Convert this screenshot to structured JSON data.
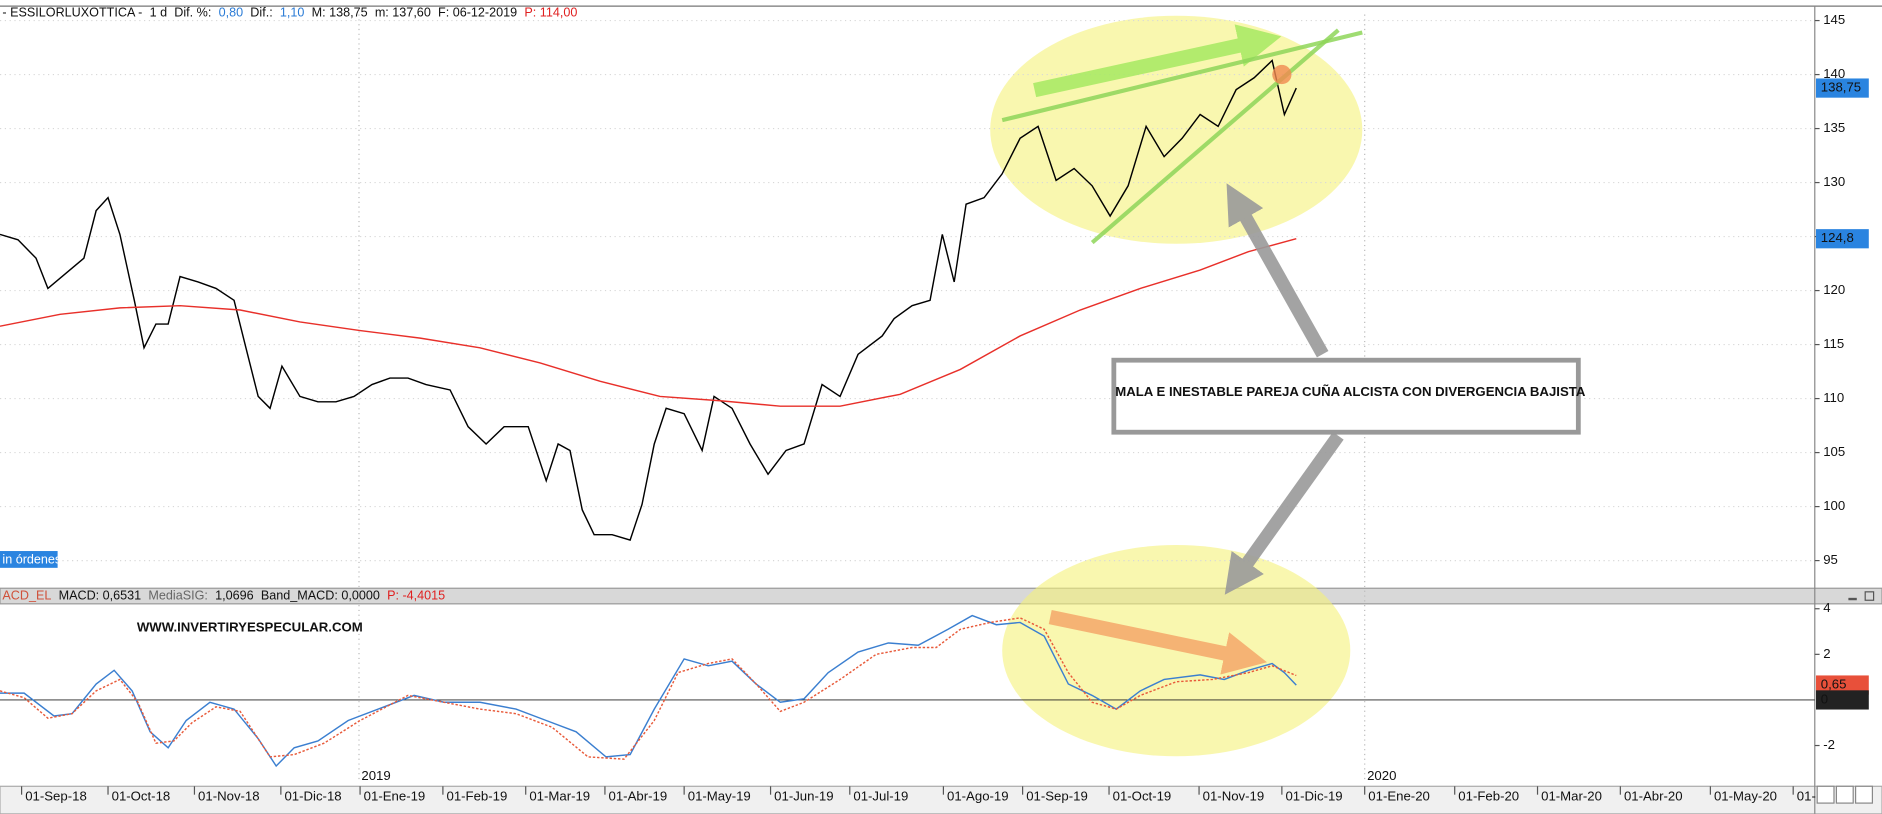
{
  "ui": {
    "orders_tab": "in órdenes"
  },
  "chart_data": [
    {
      "type": "line",
      "header_segments": [
        {
          "text": "- ESSILORLUXOTTICA -",
          "color": "#111"
        },
        {
          "text": "1 d",
          "color": "#111"
        },
        {
          "text": "Dif. %:",
          "color": "#111"
        },
        {
          "text": "0,80",
          "color": "#2a7bd6"
        },
        {
          "text": "Dif.:",
          "color": "#111"
        },
        {
          "text": "1,10",
          "color": "#2a7bd6"
        },
        {
          "text": "M: 138,75",
          "color": "#111"
        },
        {
          "text": "m: 137,60",
          "color": "#111"
        },
        {
          "text": "F: 06-12-2019",
          "color": "#111"
        },
        {
          "text": "P: 114,00",
          "color": "#e02020"
        }
      ],
      "xlim": [
        0,
        504
      ],
      "ylim": [
        92.44,
        145.56
      ],
      "yticks": [
        95,
        100,
        105,
        110,
        115,
        120,
        125,
        130,
        135,
        140,
        145
      ],
      "grid": true,
      "series": [
        {
          "color": "#000000",
          "x": [
            0,
            5,
            10,
            13.3,
            18.3,
            23.3,
            26.7,
            30,
            33.3,
            37.3,
            40,
            43.3,
            46.7,
            50,
            55,
            60,
            65,
            68.3,
            71.7,
            75,
            78.3,
            83.3,
            88.3,
            93.3,
            98.3,
            103.3,
            108.3,
            113.3,
            118.3,
            125,
            130,
            135,
            140,
            146.7,
            151.7,
            155,
            158.3,
            161.7,
            165,
            170,
            175,
            178.3,
            181.7,
            185,
            190,
            195,
            198.3,
            203.3,
            208.3,
            213.3,
            218.3,
            223.3,
            228.3,
            233.3,
            238.3,
            245,
            248.3,
            253.3,
            258.3,
            261.7,
            265,
            268.3,
            273.3,
            278.3,
            283.3,
            288.3,
            293.3,
            298.3,
            303.3,
            308.3,
            313.3,
            318.3,
            323.3,
            328.3,
            333.3,
            338.3,
            343.3,
            348.3,
            353.3,
            356.7,
            360
          ],
          "values": [
            125.2,
            124.7,
            123,
            120.2,
            121.6,
            123,
            127.4,
            128.6,
            125.2,
            119.1,
            114.7,
            116.9,
            116.9,
            121.3,
            120.8,
            120.2,
            119.1,
            114.7,
            110.2,
            109.1,
            113,
            110.2,
            109.7,
            109.7,
            110.2,
            111.3,
            111.9,
            111.9,
            111.3,
            110.8,
            107.4,
            105.8,
            107.4,
            107.4,
            102.4,
            105.8,
            105.2,
            99.7,
            97.4,
            97.4,
            96.9,
            100.2,
            105.8,
            109.1,
            108.6,
            105.2,
            110.2,
            109.1,
            105.8,
            103,
            105.2,
            105.8,
            111.3,
            110.2,
            114.1,
            115.8,
            117.4,
            118.6,
            119.1,
            125.2,
            120.8,
            128,
            128.6,
            130.8,
            134.1,
            135.2,
            130.2,
            131.3,
            129.7,
            126.9,
            129.7,
            135.2,
            132.4,
            134.1,
            136.3,
            135.2,
            138.6,
            139.7,
            141.3,
            136.3,
            138.75
          ]
        },
        {
          "color": "#e8302a",
          "x": [
            0,
            16.7,
            33.3,
            50,
            66.7,
            83.3,
            100,
            116.7,
            133.3,
            150,
            166.7,
            183.3,
            200,
            216.7,
            233.3,
            250,
            266.7,
            283.3,
            300,
            316.7,
            333.3,
            346.7,
            360
          ],
          "values": [
            116.7,
            117.8,
            118.4,
            118.6,
            118.2,
            117.1,
            116.3,
            115.6,
            114.7,
            113.3,
            111.6,
            110.2,
            109.8,
            109.3,
            109.3,
            110.4,
            112.7,
            115.8,
            118.2,
            120.2,
            121.9,
            123.6,
            124.8
          ]
        }
      ],
      "flags": [
        {
          "value": 138.75,
          "label": "138,75",
          "color": "#2a84e0"
        },
        {
          "value": 124.8,
          "label": "124,8",
          "color": "#2a84e0"
        }
      ],
      "annotations": [
        "MALA E INESTABLE PAREJA CUÑA ALCISTA CON DIVERGENCIA BAJISTA"
      ]
    },
    {
      "type": "line",
      "header_segments": [
        {
          "text": "ACD_EL",
          "color": "#d0503a"
        },
        {
          "text": "MACD: 0,6531",
          "color": "#111"
        },
        {
          "text": "MediaSIG:",
          "color": "#666"
        },
        {
          "text": "1,0696",
          "color": "#111"
        },
        {
          "text": "Band_MACD: 0,0000",
          "color": "#111"
        },
        {
          "text": "P: -4,4015",
          "color": "#e02020"
        }
      ],
      "xlim": [
        0,
        504
      ],
      "ylim": [
        -3.63,
        4.11
      ],
      "yticks": [
        -2,
        2,
        4
      ],
      "zero_line": true,
      "series": [
        {
          "color": "#3b7fd0",
          "dash": false,
          "x": [
            0,
            6.7,
            15,
            20,
            26.7,
            31.7,
            36.7,
            41.7,
            46.7,
            51.7,
            58.3,
            65,
            71.7,
            76.7,
            81.7,
            88.3,
            96.7,
            106.7,
            115,
            123.3,
            133.3,
            143.3,
            151.7,
            160,
            168.3,
            175,
            181.7,
            190,
            196.7,
            203.3,
            210,
            216.7,
            223.3,
            230,
            238.3,
            246.7,
            255,
            263.3,
            270,
            276.7,
            283.3,
            290,
            296.7,
            303.3,
            310,
            316.7,
            323.3,
            333.3,
            340,
            346.7,
            353.3,
            356.7,
            360
          ],
          "values": [
            0.3,
            0.3,
            -0.7,
            -0.6,
            0.7,
            1.3,
            0.4,
            -1.4,
            -2.1,
            -0.9,
            -0.1,
            -0.4,
            -1.7,
            -2.9,
            -2.1,
            -1.8,
            -0.9,
            -0.3,
            0.2,
            -0.1,
            -0.1,
            -0.4,
            -0.9,
            -1.4,
            -2.5,
            -2.4,
            -0.4,
            1.8,
            1.5,
            1.7,
            0.7,
            -0.1,
            0.05,
            1.2,
            2.1,
            2.5,
            2.4,
            3.1,
            3.7,
            3.3,
            3.4,
            2.8,
            0.7,
            0.2,
            -0.4,
            0.4,
            0.9,
            1.1,
            0.9,
            1.3,
            1.6,
            1.2,
            0.65
          ]
        },
        {
          "color": "#e85a3a",
          "dash": true,
          "x": [
            0,
            6.7,
            13.3,
            20,
            26.7,
            33.3,
            38.3,
            43.3,
            48.3,
            53.3,
            60,
            66.7,
            75,
            81.7,
            90,
            100,
            113.3,
            123.3,
            133.3,
            143.3,
            153.3,
            163.3,
            173.3,
            181.7,
            188.3,
            196.7,
            203.3,
            210,
            216.7,
            223.3,
            233.3,
            243.3,
            253.3,
            260,
            266.7,
            275,
            283.3,
            290,
            296.7,
            303.3,
            310,
            316.7,
            326.7,
            336.7,
            346.7,
            353.3,
            360
          ],
          "values": [
            0.4,
            0.1,
            -0.8,
            -0.6,
            0.4,
            0.9,
            -0.1,
            -1.9,
            -1.8,
            -1,
            -0.3,
            -0.5,
            -2.5,
            -2.4,
            -1.9,
            -0.9,
            0.2,
            -0.1,
            -0.4,
            -0.6,
            -1.2,
            -2.5,
            -2.6,
            -0.9,
            1.2,
            1.6,
            1.8,
            0.7,
            -0.5,
            -0.1,
            0.9,
            2,
            2.3,
            2.3,
            3.1,
            3.4,
            3.6,
            3.1,
            1.2,
            -0.1,
            -0.4,
            0.2,
            0.8,
            0.9,
            1.2,
            1.5,
            1.07
          ]
        }
      ],
      "flags": [
        {
          "value": 0.6531,
          "label": "0,65",
          "color": "#e8503a"
        },
        {
          "value": 0,
          "label": "0",
          "color": "#222222"
        }
      ],
      "xticks": [
        {
          "value": 6,
          "label": "01-Sep-18"
        },
        {
          "value": 30,
          "label": "01-Oct-18"
        },
        {
          "value": 54,
          "label": "01-Nov-18"
        },
        {
          "value": 78,
          "label": "01-Dic-18"
        },
        {
          "value": 100,
          "label": "01-Ene-19"
        },
        {
          "value": 123,
          "label": "01-Feb-19"
        },
        {
          "value": 146,
          "label": "01-Mar-19"
        },
        {
          "value": 168,
          "label": "01-Abr-19"
        },
        {
          "value": 190,
          "label": "01-May-19"
        },
        {
          "value": 214,
          "label": "01-Jun-19"
        },
        {
          "value": 236,
          "label": "01-Jul-19"
        },
        {
          "value": 262,
          "label": "01-Ago-19"
        },
        {
          "value": 284,
          "label": "01-Sep-19"
        },
        {
          "value": 308,
          "label": "01-Oct-19"
        },
        {
          "value": 333,
          "label": "01-Nov-19"
        },
        {
          "value": 356,
          "label": "01-Dic-19"
        },
        {
          "value": 379,
          "label": "01-Ene-20"
        },
        {
          "value": 404,
          "label": "01-Feb-20"
        },
        {
          "value": 427,
          "label": "01-Mar-20"
        },
        {
          "value": 450,
          "label": "01-Abr-20"
        },
        {
          "value": 475,
          "label": "01-May-20"
        },
        {
          "value": 498,
          "label": "01-"
        }
      ],
      "year_markers": [
        {
          "value": 99.7,
          "label": "2019"
        },
        {
          "value": 379,
          "label": "2020"
        }
      ],
      "annotations": [
        "WWW.INVERTIRYESPECULAR.COM"
      ]
    }
  ]
}
